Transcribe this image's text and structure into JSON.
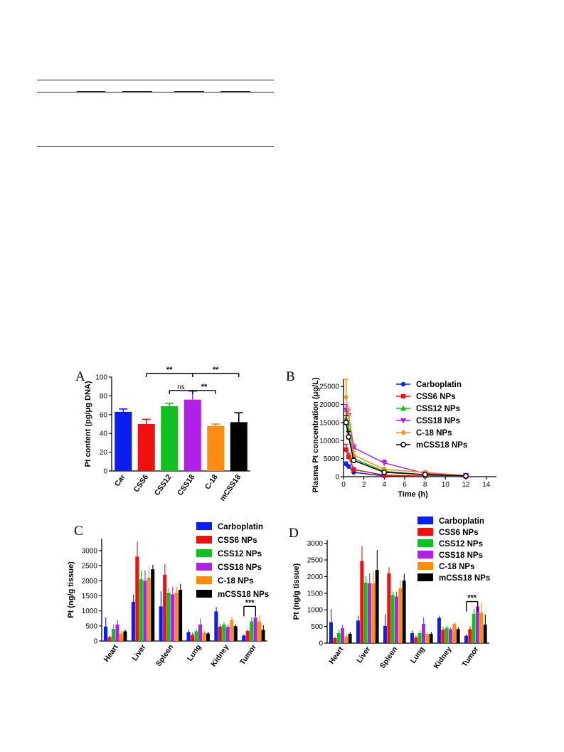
{
  "chart_data": [
    {
      "panel": "A",
      "type": "bar",
      "categories": [
        "Car",
        "CSS6",
        "CSS12",
        "CSS18",
        "C-18",
        "mCSS18"
      ],
      "values": [
        63,
        50,
        69,
        76,
        48,
        52
      ],
      "errors": [
        3,
        5,
        3,
        9,
        2,
        10
      ],
      "colors": [
        "#0a1ef0",
        "#f01010",
        "#10c020",
        "#b020e8",
        "#ff8c10",
        "#000000"
      ],
      "ylabel": "Pt content (pg/μg DNA)",
      "ylim": [
        0,
        100
      ],
      "yticks": [
        0,
        20,
        40,
        60,
        80,
        100
      ],
      "significance": [
        {
          "from": 1,
          "to": 3,
          "label": "**",
          "level": 100
        },
        {
          "from": 2,
          "to": 3,
          "label": "ns",
          "level": 88
        },
        {
          "from": 3,
          "to": 5,
          "label": "**",
          "level": 100
        },
        {
          "from": 3,
          "to": 4,
          "label": "**",
          "level": 88
        }
      ]
    },
    {
      "panel": "B",
      "type": "line",
      "xlabel": "Time (h)",
      "ylabel": "Plasma Pt concentration (μg/L)",
      "xlim": [
        0,
        15
      ],
      "ylim": [
        0,
        27000
      ],
      "xticks": [
        0,
        2,
        4,
        6,
        8,
        10,
        12,
        14
      ],
      "yticks": [
        0,
        5000,
        10000,
        15000,
        20000,
        25000
      ],
      "x": [
        0.25,
        0.5,
        1,
        4,
        8,
        12
      ],
      "series": [
        {
          "name": "Carboplatin",
          "color": "#0a1ef0",
          "marker": "circle",
          "values": [
            3500,
            2800,
            1200,
            200,
            100,
            50
          ],
          "errors": [
            600,
            500,
            300,
            100,
            50,
            30
          ]
        },
        {
          "name": "CSS6 NPs",
          "color": "#f01010",
          "marker": "square",
          "values": [
            7500,
            5500,
            2000,
            400,
            200,
            100
          ],
          "errors": [
            1500,
            1000,
            500,
            200,
            100,
            50
          ]
        },
        {
          "name": "CSS12 NPs",
          "color": "#10c020",
          "marker": "triangle",
          "values": [
            16000,
            13000,
            5000,
            1500,
            500,
            200
          ],
          "errors": [
            2000,
            1500,
            800,
            400,
            200,
            100
          ]
        },
        {
          "name": "CSS18 NPs",
          "color": "#b020e8",
          "marker": "triangle-down",
          "values": [
            18500,
            17000,
            8000,
            3800,
            900,
            400
          ],
          "errors": [
            1500,
            1500,
            1000,
            800,
            300,
            100
          ]
        },
        {
          "name": "C-18 NPs",
          "color": "#ff8c10",
          "marker": "diamond",
          "values": [
            22000,
            17000,
            6000,
            2000,
            1200,
            300
          ],
          "errors": [
            5000,
            2000,
            1000,
            500,
            400,
            100
          ]
        },
        {
          "name": "mCSS18 NPs",
          "color": "#000000",
          "marker": "open-circle",
          "values": [
            15000,
            11000,
            4500,
            1200,
            600,
            200
          ],
          "errors": [
            2000,
            1500,
            800,
            400,
            200,
            100
          ]
        }
      ]
    },
    {
      "panel": "C",
      "type": "bar",
      "categories": [
        "Heart",
        "Liver",
        "Spleen",
        "Lung",
        "Kidney",
        "Tumor"
      ],
      "ylabel": "Pt (ng/g tissue)",
      "ylim": [
        0,
        3400
      ],
      "yticks": [
        0,
        500,
        1000,
        1500,
        2000,
        2500,
        3000
      ],
      "significance": {
        "category": 5,
        "label": "***",
        "level": 1150
      },
      "series": [
        {
          "name": "Carboplatin",
          "color": "#0a1ef0",
          "values": [
            480,
            1300,
            1150,
            300,
            980,
            180
          ],
          "errors": [
            300,
            250,
            500,
            60,
            150,
            40
          ]
        },
        {
          "name": "CSS6 NPs",
          "color": "#f01010",
          "values": [
            130,
            2800,
            2200,
            200,
            480,
            330
          ],
          "errors": [
            50,
            500,
            350,
            80,
            100,
            60
          ]
        },
        {
          "name": "CSS12 NPs",
          "color": "#10c020",
          "values": [
            400,
            2050,
            1600,
            320,
            550,
            650
          ],
          "errors": [
            150,
            300,
            150,
            80,
            80,
            150
          ]
        },
        {
          "name": "CSS18 NPs",
          "color": "#b020e8",
          "values": [
            550,
            2000,
            1550,
            550,
            470,
            780
          ],
          "errors": [
            150,
            350,
            250,
            200,
            80,
            200
          ]
        },
        {
          "name": "C-18 NPs",
          "color": "#ff8c10",
          "values": [
            250,
            2100,
            1600,
            280,
            700,
            650
          ],
          "errors": [
            100,
            350,
            200,
            80,
            100,
            200
          ]
        },
        {
          "name": "mCSS18 NPs",
          "color": "#000000",
          "values": [
            320,
            2380,
            1700,
            250,
            490,
            370
          ],
          "errors": [
            60,
            150,
            200,
            60,
            60,
            150
          ]
        }
      ]
    },
    {
      "panel": "D",
      "type": "bar",
      "categories": [
        "Heart",
        "Liver",
        "Spleen",
        "Lung",
        "Kidney",
        "Tumor"
      ],
      "ylabel": "Pt (ng/g tissue)",
      "ylim": [
        0,
        3100
      ],
      "yticks": [
        0,
        500,
        1000,
        1500,
        2000,
        2500,
        3000
      ],
      "significance": {
        "category": 5,
        "label": "***",
        "level": 1250
      },
      "series": [
        {
          "name": "Carboplatin",
          "color": "#0a1ef0",
          "values": [
            630,
            680,
            520,
            300,
            760,
            220
          ],
          "errors": [
            400,
            150,
            350,
            80,
            60,
            50
          ]
        },
        {
          "name": "CSS6 NPs",
          "color": "#f01010",
          "values": [
            150,
            2470,
            2100,
            170,
            400,
            420
          ],
          "errors": [
            50,
            450,
            180,
            60,
            80,
            100
          ]
        },
        {
          "name": "CSS12 NPs",
          "color": "#10c020",
          "values": [
            300,
            1820,
            1450,
            300,
            460,
            880
          ],
          "errors": [
            100,
            200,
            100,
            80,
            60,
            150
          ]
        },
        {
          "name": "CSS18 NPs",
          "color": "#b020e8",
          "values": [
            450,
            1800,
            1400,
            580,
            420,
            1100
          ],
          "errors": [
            100,
            300,
            150,
            200,
            60,
            150
          ]
        },
        {
          "name": "C-18 NPs",
          "color": "#ff8c10",
          "values": [
            200,
            1800,
            1650,
            280,
            580,
            920
          ],
          "errors": [
            80,
            350,
            250,
            60,
            60,
            300
          ]
        },
        {
          "name": "mCSS18 NPs",
          "color": "#000000",
          "values": [
            280,
            2200,
            1880,
            280,
            420,
            560
          ],
          "errors": [
            60,
            600,
            200,
            60,
            60,
            300
          ]
        }
      ]
    }
  ]
}
